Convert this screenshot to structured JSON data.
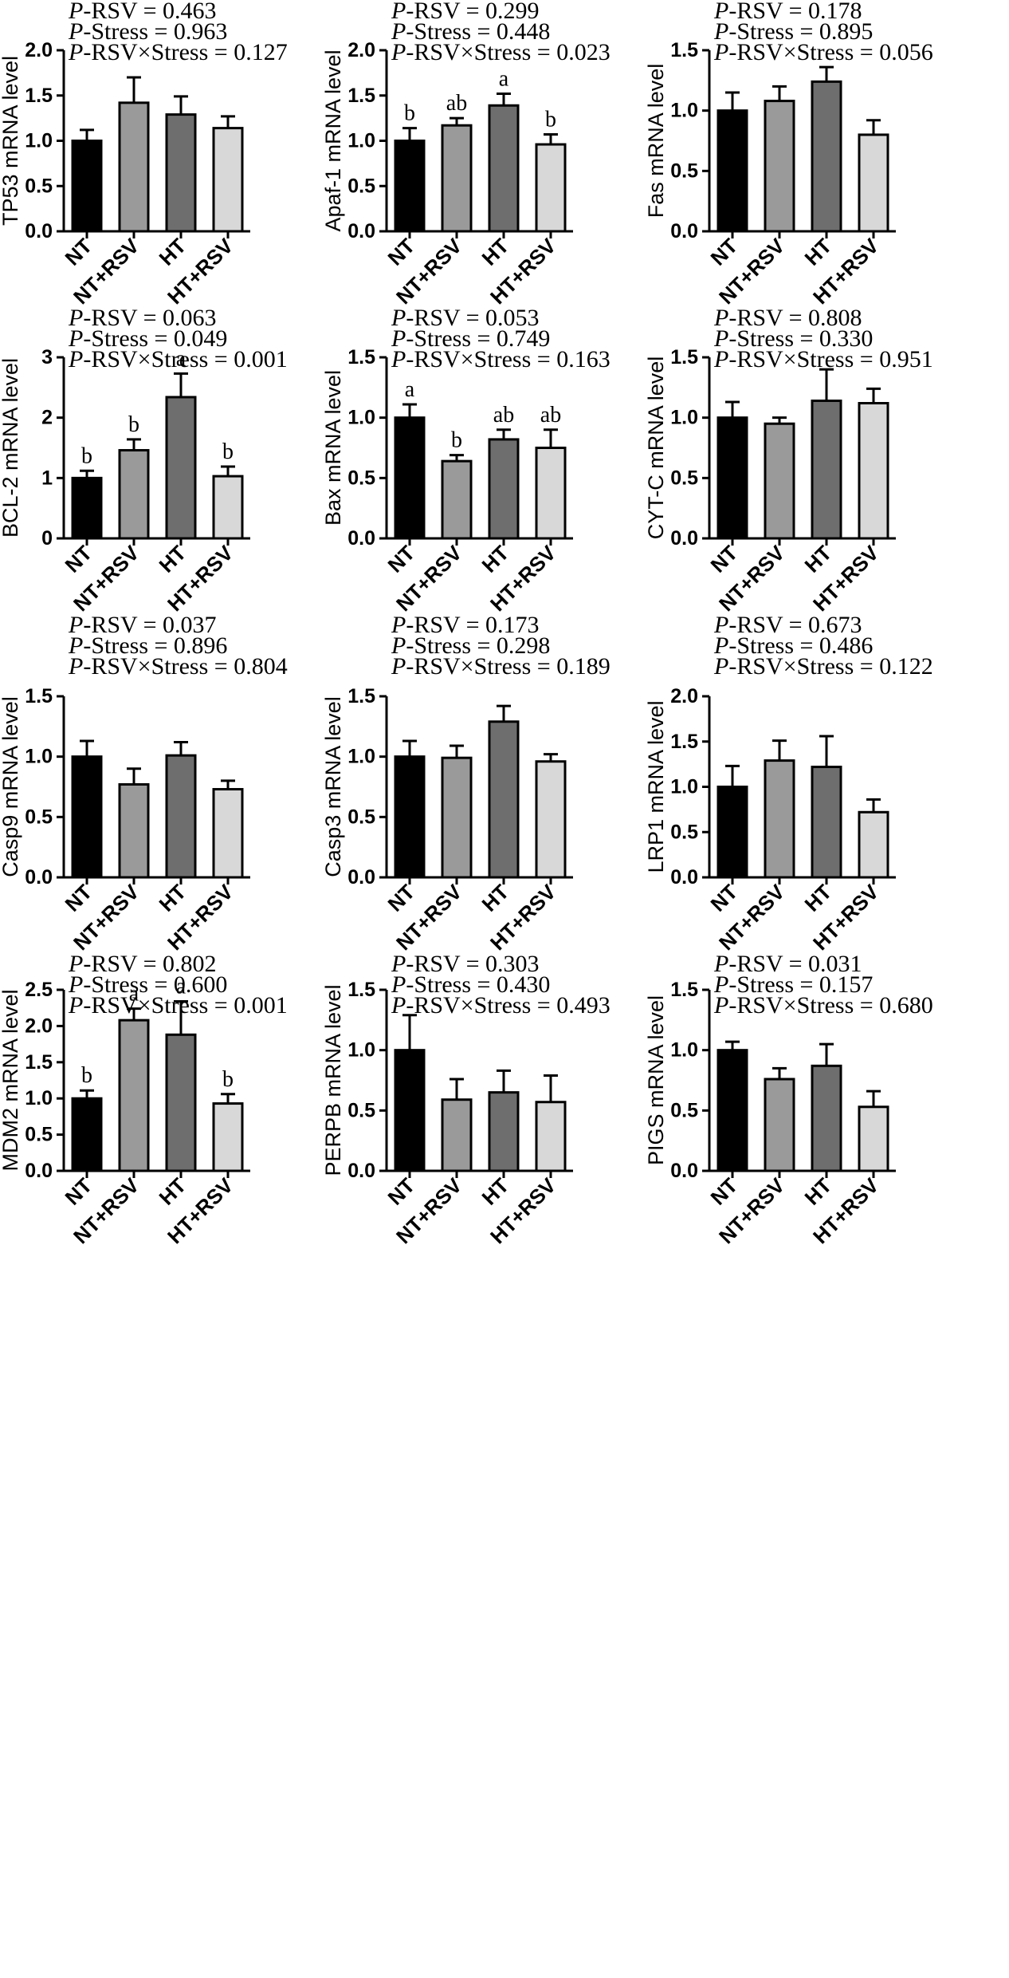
{
  "figure": {
    "categories": [
      "NT",
      "NT+RSV",
      "HT",
      "HT+RSV"
    ],
    "bar_colors": [
      "#000000",
      "#9a9a9a",
      "#6e6e6e",
      "#d8d8d8"
    ],
    "stat_labels": {
      "p": "P",
      "rsv": "-RSV = ",
      "stress": "-Stress = ",
      "inter": "-RSV×Stress = "
    }
  },
  "chart_data": [
    {
      "type": "bar",
      "ylabel": "TP53 mRNA level",
      "ylim": [
        0,
        2.0
      ],
      "yticks": [
        "0.0",
        "0.5",
        "1.0",
        "1.5",
        "2.0"
      ],
      "categories": [
        "NT",
        "NT+RSV",
        "HT",
        "HT+RSV"
      ],
      "values": [
        1.0,
        1.42,
        1.29,
        1.14
      ],
      "errors": [
        0.12,
        0.28,
        0.2,
        0.13
      ],
      "letters": [
        "",
        "",
        "",
        ""
      ],
      "p_rsv": "0.463",
      "p_stress": "0.963",
      "p_inter": "0.127"
    },
    {
      "type": "bar",
      "ylabel": "Apaf-1 mRNA level",
      "ylim": [
        0,
        2.0
      ],
      "yticks": [
        "0.0",
        "0.5",
        "1.0",
        "1.5",
        "2.0"
      ],
      "categories": [
        "NT",
        "NT+RSV",
        "HT",
        "HT+RSV"
      ],
      "values": [
        1.0,
        1.17,
        1.39,
        0.96
      ],
      "errors": [
        0.14,
        0.08,
        0.13,
        0.11
      ],
      "letters": [
        "b",
        "ab",
        "a",
        "b"
      ],
      "p_rsv": "0.299",
      "p_stress": "0.448",
      "p_inter": "0.023"
    },
    {
      "type": "bar",
      "ylabel": "Fas mRNA level",
      "ylim": [
        0,
        1.5
      ],
      "yticks": [
        "0.0",
        "0.5",
        "1.0",
        "1.5"
      ],
      "categories": [
        "NT",
        "NT+RSV",
        "HT",
        "HT+RSV"
      ],
      "values": [
        1.0,
        1.08,
        1.24,
        0.8
      ],
      "errors": [
        0.15,
        0.12,
        0.12,
        0.12
      ],
      "letters": [
        "",
        "",
        "",
        ""
      ],
      "p_rsv": "0.178",
      "p_stress": "0.895",
      "p_inter": "0.056"
    },
    {
      "type": "bar",
      "ylabel": "BCL-2 mRNA level",
      "ylim": [
        0,
        3
      ],
      "yticks": [
        "0",
        "1",
        "2",
        "3"
      ],
      "categories": [
        "NT",
        "NT+RSV",
        "HT",
        "HT+RSV"
      ],
      "values": [
        1.0,
        1.46,
        2.34,
        1.03
      ],
      "errors": [
        0.12,
        0.18,
        0.39,
        0.16
      ],
      "letters": [
        "b",
        "b",
        "a",
        "b"
      ],
      "p_rsv": "0.063",
      "p_stress": "0.049",
      "p_inter": "0.001"
    },
    {
      "type": "bar",
      "ylabel": "Bax mRNA level",
      "ylim": [
        0,
        1.5
      ],
      "yticks": [
        "0.0",
        "0.5",
        "1.0",
        "1.5"
      ],
      "categories": [
        "NT",
        "NT+RSV",
        "HT",
        "HT+RSV"
      ],
      "values": [
        1.0,
        0.64,
        0.82,
        0.75
      ],
      "errors": [
        0.11,
        0.05,
        0.08,
        0.15
      ],
      "letters": [
        "a",
        "b",
        "ab",
        "ab"
      ],
      "p_rsv": "0.053",
      "p_stress": "0.749",
      "p_inter": "0.163"
    },
    {
      "type": "bar",
      "ylabel": "CYT-C mRNA level",
      "ylim": [
        0,
        1.5
      ],
      "yticks": [
        "0.0",
        "0.5",
        "1.0",
        "1.5"
      ],
      "categories": [
        "NT",
        "NT+RSV",
        "HT",
        "HT+RSV"
      ],
      "values": [
        1.0,
        0.95,
        1.14,
        1.12
      ],
      "errors": [
        0.13,
        0.05,
        0.26,
        0.12
      ],
      "letters": [
        "",
        "",
        "",
        ""
      ],
      "p_rsv": "0.808",
      "p_stress": "0.330",
      "p_inter": "0.951"
    },
    {
      "type": "bar",
      "ylabel": "Casp9 mRNA level",
      "ylim": [
        0,
        1.5
      ],
      "yticks": [
        "0.0",
        "0.5",
        "1.0",
        "1.5"
      ],
      "categories": [
        "NT",
        "NT+RSV",
        "HT",
        "HT+RSV"
      ],
      "values": [
        1.0,
        0.77,
        1.01,
        0.73
      ],
      "errors": [
        0.13,
        0.13,
        0.11,
        0.07
      ],
      "letters": [
        "",
        "",
        "",
        ""
      ],
      "p_rsv": "0.037",
      "p_stress": "0.896",
      "p_inter": "0.804"
    },
    {
      "type": "bar",
      "ylabel": "Casp3 mRNA level",
      "ylim": [
        0,
        1.5
      ],
      "yticks": [
        "0.0",
        "0.5",
        "1.0",
        "1.5"
      ],
      "categories": [
        "NT",
        "NT+RSV",
        "HT",
        "HT+RSV"
      ],
      "values": [
        1.0,
        0.99,
        1.29,
        0.96
      ],
      "errors": [
        0.13,
        0.1,
        0.13,
        0.06
      ],
      "letters": [
        "",
        "",
        "",
        ""
      ],
      "p_rsv": "0.173",
      "p_stress": "0.298",
      "p_inter": "0.189"
    },
    {
      "type": "bar",
      "ylabel": "LRP1 mRNA level",
      "ylim": [
        0,
        2.0
      ],
      "yticks": [
        "0.0",
        "0.5",
        "1.0",
        "1.5",
        "2.0"
      ],
      "categories": [
        "NT",
        "NT+RSV",
        "HT",
        "HT+RSV"
      ],
      "values": [
        1.0,
        1.29,
        1.22,
        0.72
      ],
      "errors": [
        0.23,
        0.22,
        0.34,
        0.14
      ],
      "letters": [
        "",
        "",
        "",
        ""
      ],
      "p_rsv": "0.673",
      "p_stress": "0.486",
      "p_inter": "0.122"
    },
    {
      "type": "bar",
      "ylabel": "MDM2 mRNA level",
      "ylim": [
        0,
        2.5
      ],
      "yticks": [
        "0.0",
        "0.5",
        "1.0",
        "1.5",
        "2.0",
        "2.5"
      ],
      "categories": [
        "NT",
        "NT+RSV",
        "HT",
        "HT+RSV"
      ],
      "values": [
        1.0,
        2.08,
        1.88,
        0.93
      ],
      "errors": [
        0.11,
        0.16,
        0.46,
        0.13
      ],
      "letters": [
        "b",
        "a",
        "a",
        "b"
      ],
      "p_rsv": "0.802",
      "p_stress": "0.600",
      "p_inter": "0.001"
    },
    {
      "type": "bar",
      "ylabel": "PERPB mRNA level",
      "ylim": [
        0,
        1.5
      ],
      "yticks": [
        "0.0",
        "0.5",
        "1.0",
        "1.5"
      ],
      "categories": [
        "NT",
        "NT+RSV",
        "HT",
        "HT+RSV"
      ],
      "values": [
        1.0,
        0.59,
        0.65,
        0.57
      ],
      "errors": [
        0.29,
        0.17,
        0.18,
        0.22
      ],
      "letters": [
        "",
        "",
        "",
        ""
      ],
      "p_rsv": "0.303",
      "p_stress": "0.430",
      "p_inter": "0.493"
    },
    {
      "type": "bar",
      "ylabel": "PIGS mRNA level",
      "ylim": [
        0,
        1.5
      ],
      "yticks": [
        "0.0",
        "0.5",
        "1.0",
        "1.5"
      ],
      "categories": [
        "NT",
        "NT+RSV",
        "HT",
        "HT+RSV"
      ],
      "values": [
        1.0,
        0.76,
        0.87,
        0.53
      ],
      "errors": [
        0.07,
        0.09,
        0.18,
        0.13
      ],
      "letters": [
        "",
        "",
        "",
        ""
      ],
      "p_rsv": "0.031",
      "p_stress": "0.157",
      "p_inter": "0.680"
    }
  ]
}
